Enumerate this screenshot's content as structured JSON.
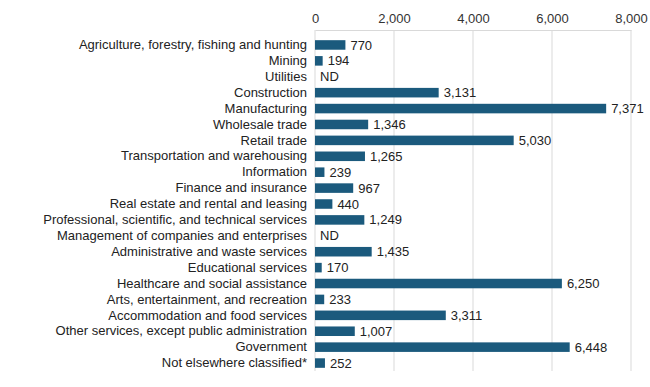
{
  "chart_data": {
    "type": "bar",
    "orientation": "horizontal",
    "categories": [
      "Agriculture, forestry, fishing and hunting",
      "Mining",
      "Utilities",
      "Construction",
      "Manufacturing",
      "Wholesale trade",
      "Retail trade",
      "Transportation and warehousing",
      "Information",
      "Finance and insurance",
      "Real estate and rental and leasing",
      "Professional, scientific, and technical services",
      "Management of companies and enterprises",
      "Administrative and waste services",
      "Educational services",
      "Healthcare and social assistance",
      "Arts, entertainment, and recreation",
      "Accommodation and food services",
      "Other services, except public administration",
      "Government",
      "Not elsewhere classified*"
    ],
    "values": [
      770,
      194,
      null,
      3131,
      7371,
      1346,
      5030,
      1265,
      239,
      967,
      440,
      1249,
      null,
      1435,
      170,
      6250,
      233,
      3311,
      1007,
      6448,
      252
    ],
    "value_labels": [
      "770",
      "194",
      "ND",
      "3,131",
      "7,371",
      "1,346",
      "5,030",
      "1,265",
      "239",
      "967",
      "440",
      "1,249",
      "ND",
      "1,435",
      "170",
      "6,250",
      "233",
      "3,311",
      "1,007",
      "6,448",
      "252"
    ],
    "data_labels": true,
    "color": "#1b5a7d",
    "xlim": [
      0,
      8000
    ],
    "xticks": [
      0,
      {
        "value": 2000,
        "label": "2,000"
      },
      {
        "value": 4000,
        "label": "4,000"
      },
      {
        "value": 6000,
        "label": "6,000"
      },
      {
        "value": 8000,
        "label": "8,000"
      }
    ],
    "grid": true
  }
}
